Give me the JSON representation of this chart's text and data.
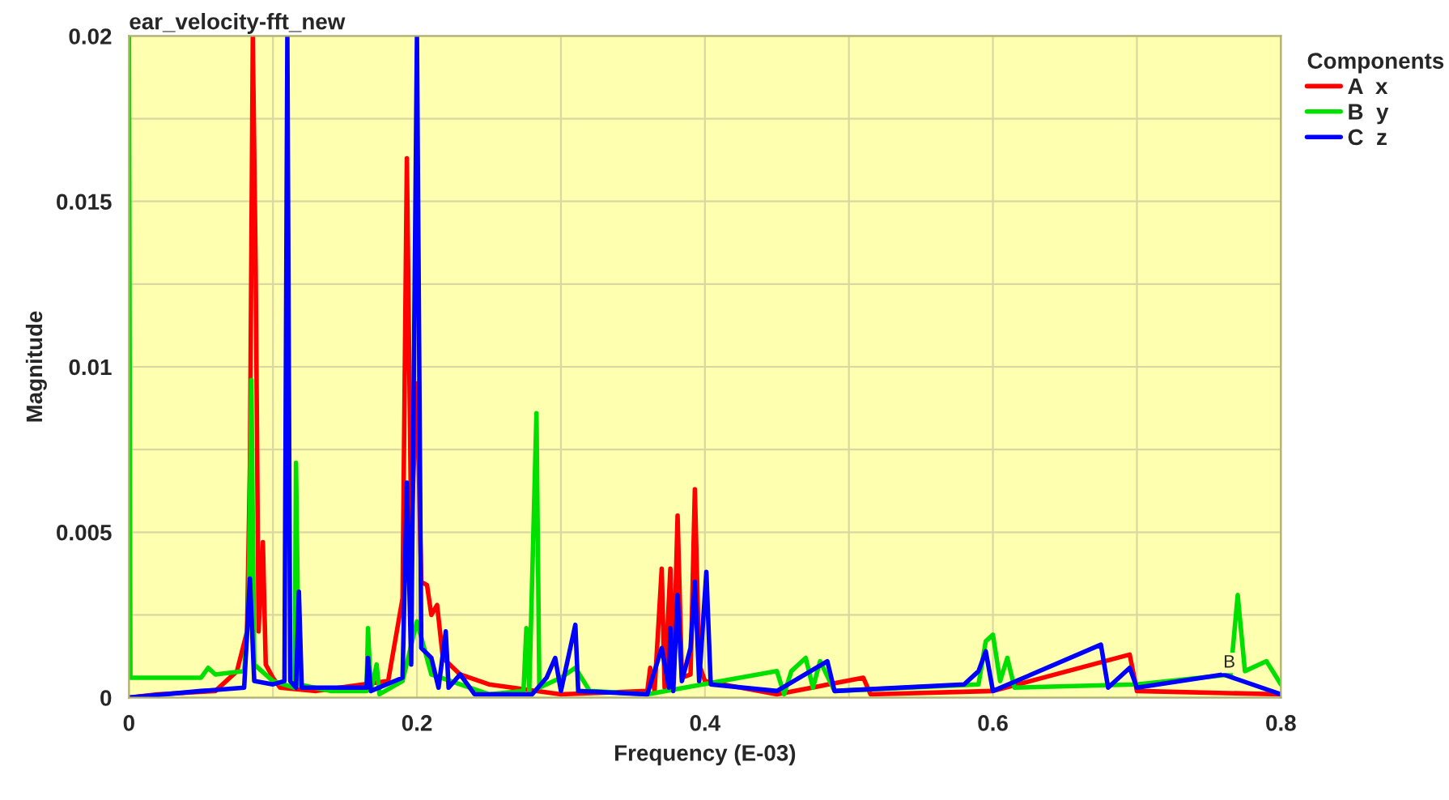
{
  "chart_data": {
    "type": "line",
    "title": "ear_velocity-fft_new",
    "xlabel": "Frequency (E-03)",
    "ylabel": "Magnitude",
    "legend_title": "Components",
    "xlim": [
      0,
      0.8
    ],
    "ylim": [
      0,
      0.02
    ],
    "xticks": [
      0,
      {
        "value": 0.1,
        "label": null
      },
      0.2,
      {
        "value": 0.3,
        "label": null
      },
      0.4,
      {
        "value": 0.5,
        "label": null
      },
      0.6,
      {
        "value": 0.7,
        "label": null
      },
      0.8
    ],
    "yticks": [
      0,
      {
        "value": 0.0025,
        "label": null
      },
      0.005,
      {
        "value": 0.0075,
        "label": null
      },
      0.01,
      {
        "value": 0.0125,
        "label": null
      },
      0.015,
      {
        "value": 0.0175,
        "label": null
      },
      0.02
    ],
    "grid": true,
    "legend": "top right",
    "marker": "none",
    "line_style": "solid",
    "annotations": [
      {
        "text": "B",
        "x": 0.76,
        "y": 0.0005
      }
    ],
    "series": [
      {
        "name": "A  x",
        "color": "#ff0000",
        "x": [
          0,
          0.02,
          0.06,
          0.075,
          0.082,
          0.084,
          0.086,
          0.088,
          0.09,
          0.093,
          0.095,
          0.1,
          0.105,
          0.13,
          0.18,
          0.19,
          0.193,
          0.196,
          0.2,
          0.203,
          0.207,
          0.21,
          0.214,
          0.218,
          0.23,
          0.25,
          0.3,
          0.36,
          0.362,
          0.365,
          0.37,
          0.372,
          0.376,
          0.378,
          0.381,
          0.384,
          0.39,
          0.393,
          0.396,
          0.4,
          0.45,
          0.51,
          0.515,
          0.6,
          0.695,
          0.7,
          0.8
        ],
        "values": [
          0,
          0.0001,
          0.0002,
          0.0008,
          0.002,
          0.007,
          0.02,
          0.013,
          0.002,
          0.0047,
          0.001,
          0.0006,
          0.0003,
          0.0002,
          0.0005,
          0.003,
          0.0163,
          0.005,
          0.0095,
          0.0035,
          0.0034,
          0.0025,
          0.0028,
          0.0012,
          0.0007,
          0.0004,
          0.0001,
          0.0002,
          0.0009,
          0.0002,
          0.0039,
          0.0003,
          0.0039,
          0.0005,
          0.0055,
          0.0006,
          0.0007,
          0.0063,
          0.001,
          0.0005,
          0.0001,
          0.0006,
          0.0001,
          0.0002,
          0.0013,
          0.0002,
          0.0001
        ]
      },
      {
        "name": "B  y",
        "color": "#00e000",
        "x": [
          0,
          0.001,
          0.05,
          0.055,
          0.06,
          0.08,
          0.083,
          0.085,
          0.087,
          0.1,
          0.115,
          0.116,
          0.118,
          0.14,
          0.165,
          0.166,
          0.168,
          0.172,
          0.174,
          0.19,
          0.2,
          0.21,
          0.25,
          0.274,
          0.276,
          0.278,
          0.283,
          0.285,
          0.3,
          0.31,
          0.32,
          0.36,
          0.45,
          0.455,
          0.46,
          0.47,
          0.475,
          0.48,
          0.49,
          0.59,
          0.595,
          0.6,
          0.605,
          0.61,
          0.615,
          0.7,
          0.765,
          0.77,
          0.775,
          0.79,
          0.8
        ],
        "values": [
          0.02,
          0.0006,
          0.0006,
          0.0009,
          0.0007,
          0.0008,
          0.0025,
          0.0096,
          0.001,
          0.0005,
          0.0003,
          0.0071,
          0.0004,
          0.0002,
          0.0002,
          0.0021,
          0.0002,
          0.001,
          0.0001,
          0.0005,
          0.0023,
          0.0007,
          0.0001,
          0.0002,
          0.0021,
          0.0002,
          0.0086,
          0.0003,
          0.0006,
          0.0009,
          0.0002,
          0.0001,
          0.0008,
          0.0001,
          0.0008,
          0.0012,
          0.0003,
          0.0011,
          0.0002,
          0.0004,
          0.0017,
          0.0019,
          0.0005,
          0.0012,
          0.0003,
          0.0004,
          0.0007,
          0.0031,
          0.0008,
          0.0011,
          0.0004
        ]
      },
      {
        "name": "C  z",
        "color": "#0000ff",
        "x": [
          0,
          0.05,
          0.08,
          0.084,
          0.087,
          0.1,
          0.108,
          0.11,
          0.112,
          0.116,
          0.118,
          0.12,
          0.165,
          0.166,
          0.168,
          0.19,
          0.193,
          0.196,
          0.2,
          0.203,
          0.21,
          0.215,
          0.22,
          0.222,
          0.23,
          0.24,
          0.28,
          0.29,
          0.296,
          0.3,
          0.31,
          0.312,
          0.36,
          0.37,
          0.375,
          0.376,
          0.378,
          0.381,
          0.384,
          0.39,
          0.393,
          0.396,
          0.401,
          0.404,
          0.45,
          0.485,
          0.49,
          0.58,
          0.59,
          0.595,
          0.6,
          0.675,
          0.68,
          0.695,
          0.7,
          0.76,
          0.8
        ],
        "values": [
          0,
          0.0002,
          0.0003,
          0.0036,
          0.0005,
          0.0004,
          0.0005,
          0.02,
          0.0005,
          0.0003,
          0.0032,
          0.0003,
          0.0003,
          0.0012,
          0.0002,
          0.0006,
          0.0065,
          0.001,
          0.02,
          0.0015,
          0.0012,
          0.0003,
          0.002,
          0.0003,
          0.0007,
          0.0001,
          0.0001,
          0.0006,
          0.0012,
          0.0002,
          0.0022,
          0.0002,
          0.0001,
          0.0015,
          0.0003,
          0.0021,
          0.0002,
          0.0031,
          0.0005,
          0.0015,
          0.0035,
          0.0005,
          0.0038,
          0.0004,
          0.0002,
          0.0011,
          0.0002,
          0.0004,
          0.0008,
          0.0014,
          0.0002,
          0.0016,
          0.0003,
          0.0009,
          0.0003,
          0.0007,
          0.0001
        ]
      }
    ]
  }
}
